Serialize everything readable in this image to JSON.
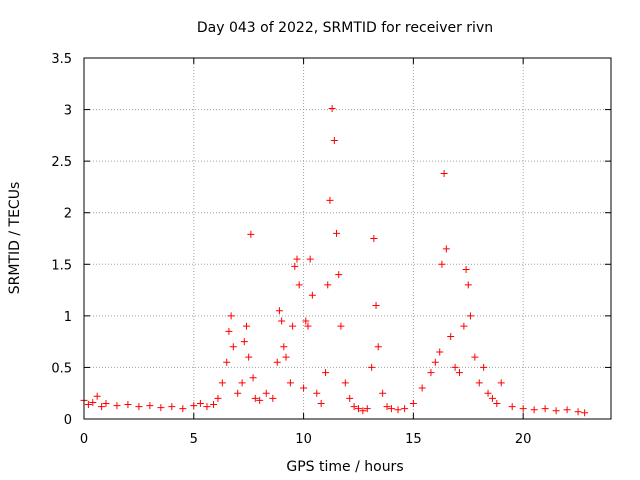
{
  "chart_data": {
    "type": "scatter",
    "title": "Day 043 of 2022, SRMTID for receiver rivn",
    "xlabel": "GPS time / hours",
    "ylabel": "SRMTID / TECUs",
    "xlim": [
      0,
      24
    ],
    "ylim": [
      0,
      3.5
    ],
    "xticks": [
      0,
      5,
      10,
      15,
      20
    ],
    "yticks": [
      0,
      0.5,
      1,
      1.5,
      2,
      2.5,
      3,
      3.5
    ],
    "grid": true,
    "marker": "+",
    "color": "#ff0000",
    "series": [
      {
        "name": "SRMTID",
        "x": [
          0.0,
          0.2,
          0.4,
          0.6,
          0.8,
          1.0,
          1.5,
          2.0,
          2.5,
          3.0,
          3.5,
          4.0,
          4.5,
          5.0,
          5.3,
          5.6,
          5.9,
          6.1,
          6.3,
          6.5,
          6.6,
          6.7,
          6.8,
          7.0,
          7.2,
          7.3,
          7.4,
          7.5,
          7.6,
          7.7,
          7.8,
          8.0,
          8.3,
          8.6,
          8.8,
          8.9,
          9.0,
          9.1,
          9.2,
          9.4,
          9.5,
          9.6,
          9.7,
          9.8,
          10.0,
          10.1,
          10.2,
          10.3,
          10.4,
          10.6,
          10.8,
          11.0,
          11.1,
          11.2,
          11.3,
          11.4,
          11.5,
          11.6,
          11.7,
          11.9,
          12.1,
          12.3,
          12.5,
          12.7,
          12.9,
          13.1,
          13.2,
          13.3,
          13.4,
          13.6,
          13.8,
          14.0,
          14.3,
          14.6,
          15.0,
          15.4,
          15.8,
          16.0,
          16.2,
          16.3,
          16.4,
          16.5,
          16.7,
          16.9,
          17.1,
          17.3,
          17.4,
          17.5,
          17.6,
          17.8,
          18.0,
          18.2,
          18.4,
          18.6,
          18.8,
          19.0,
          19.5,
          20.0,
          20.5,
          21.0,
          21.5,
          22.0,
          22.5,
          22.8
        ],
        "y": [
          0.18,
          0.14,
          0.16,
          0.22,
          0.12,
          0.15,
          0.13,
          0.14,
          0.12,
          0.13,
          0.11,
          0.12,
          0.1,
          0.13,
          0.15,
          0.12,
          0.14,
          0.2,
          0.35,
          0.55,
          0.85,
          1.0,
          0.7,
          0.25,
          0.35,
          0.75,
          0.9,
          0.6,
          1.79,
          0.4,
          0.2,
          0.18,
          0.25,
          0.2,
          0.55,
          1.05,
          0.95,
          0.7,
          0.6,
          0.35,
          0.9,
          1.48,
          1.55,
          1.3,
          0.3,
          0.95,
          0.9,
          1.55,
          1.2,
          0.25,
          0.15,
          0.45,
          1.3,
          2.12,
          3.01,
          2.7,
          1.8,
          1.4,
          0.9,
          0.35,
          0.2,
          0.12,
          0.1,
          0.08,
          0.1,
          0.5,
          1.75,
          1.1,
          0.7,
          0.25,
          0.12,
          0.1,
          0.09,
          0.1,
          0.15,
          0.3,
          0.45,
          0.55,
          0.65,
          1.5,
          2.38,
          1.65,
          0.8,
          0.5,
          0.45,
          0.9,
          1.45,
          1.3,
          1.0,
          0.6,
          0.35,
          0.5,
          0.25,
          0.2,
          0.15,
          0.35,
          0.12,
          0.1,
          0.09,
          0.1,
          0.08,
          0.09,
          0.07,
          0.06
        ]
      }
    ]
  }
}
